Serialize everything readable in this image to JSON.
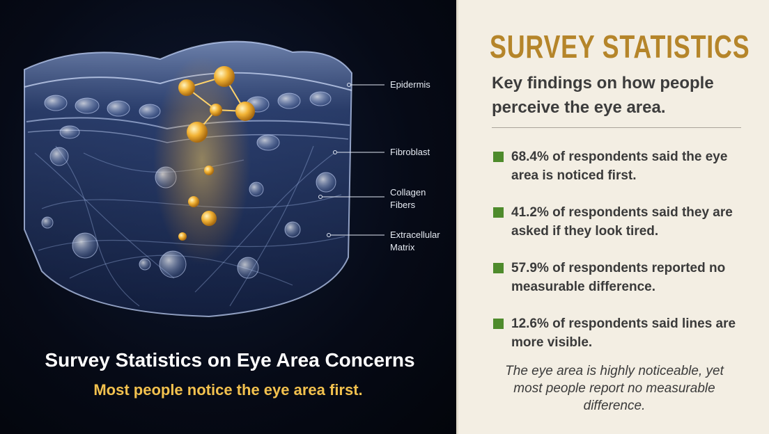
{
  "illustration": {
    "labels": [
      "Epidermis",
      "Fibroblast",
      "Collagen Fibers",
      "Extracellular Matrix"
    ]
  },
  "caption": {
    "title": "Survey Statistics on Eye Area Concerns",
    "subtitle": "Most people notice the eye area first."
  },
  "panel": {
    "heading": "SURVEY STATISTICS",
    "subheading": "Key findings on how people perceive the eye area.",
    "findings": [
      "68.4% of respondents said the eye area is noticed first.",
      "41.2% of respondents said they are asked if they look tired.",
      "57.9% of respondents reported no measurable difference.",
      "12.6% of respondents said lines are more visible."
    ],
    "note": "The eye area is highly noticeable, yet most people report no measurable difference."
  }
}
